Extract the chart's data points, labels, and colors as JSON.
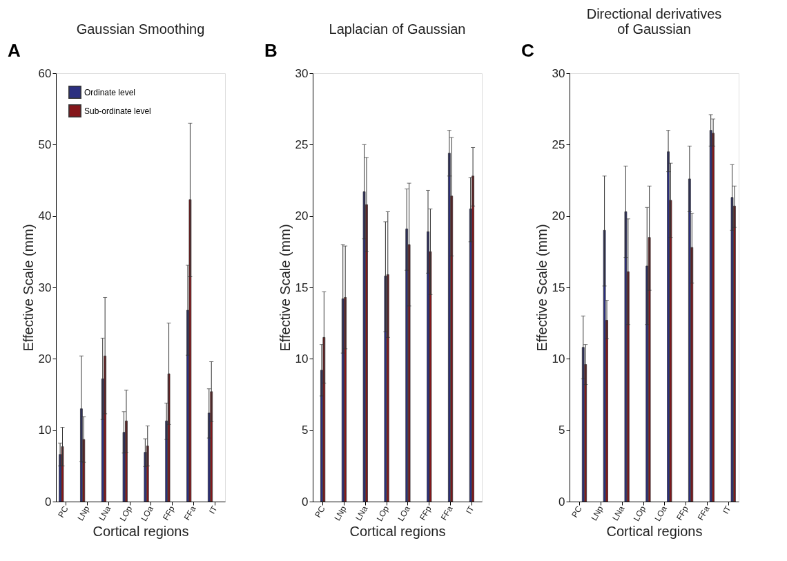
{
  "chart_data": [
    {
      "type": "bar",
      "title": "Gaussian Smoothing",
      "xlabel": "Cortical regions",
      "ylabel": "Effective Scale (mm)",
      "annotations": [
        "A"
      ],
      "categories": [
        "PC",
        "LNp",
        "LNa",
        "LOp",
        "LOa",
        "FFp",
        "FFa",
        "IT"
      ],
      "series": [
        {
          "name": "Ordinate level",
          "color": "#2b2f80",
          "values": [
            6.6,
            13.0,
            17.2,
            9.7,
            6.9,
            11.3,
            26.8,
            12.4
          ],
          "errors": [
            [
              5.0,
              8.2
            ],
            [
              5.6,
              20.4
            ],
            [
              11.5,
              22.9
            ],
            [
              6.8,
              12.6
            ],
            [
              4.9,
              8.8
            ],
            [
              8.7,
              13.8
            ],
            [
              20.5,
              33.1
            ],
            [
              8.9,
              15.8
            ]
          ]
        },
        {
          "name": "Sub-ordinate level",
          "color": "#85161a",
          "values": [
            7.7,
            8.7,
            20.4,
            11.3,
            7.8,
            17.9,
            42.3,
            15.4
          ],
          "errors": [
            [
              5.0,
              10.4
            ],
            [
              5.5,
              11.9
            ],
            [
              12.3,
              28.6
            ],
            [
              6.9,
              15.6
            ],
            [
              5.0,
              10.6
            ],
            [
              10.8,
              25.0
            ],
            [
              31.5,
              53.0
            ],
            [
              11.2,
              19.6
            ]
          ]
        }
      ],
      "ylim": [
        0,
        60
      ],
      "yticks": [
        0,
        10,
        20,
        30,
        40,
        50,
        60
      ],
      "grid": false,
      "legend": "top left"
    },
    {
      "type": "bar",
      "title": "Laplacian of Gaussian",
      "xlabel": "Cortical regions",
      "ylabel": "Effective Scale (mm)",
      "annotations": [
        "B"
      ],
      "categories": [
        "PC",
        "LNp",
        "LNa",
        "LOp",
        "LOa",
        "FFp",
        "FFa",
        "IT"
      ],
      "series": [
        {
          "color": "#2b2f80",
          "values": [
            9.2,
            14.2,
            21.7,
            15.8,
            19.1,
            18.9,
            24.4,
            20.5
          ],
          "errors": [
            [
              7.4,
              11.0
            ],
            [
              10.4,
              18.0
            ],
            [
              18.4,
              25.0
            ],
            [
              11.9,
              19.6
            ],
            [
              16.2,
              21.9
            ],
            [
              16.0,
              21.8
            ],
            [
              22.8,
              26.0
            ],
            [
              18.2,
              22.7
            ]
          ]
        },
        {
          "color": "#85161a",
          "values": [
            11.5,
            14.3,
            20.8,
            15.9,
            18.0,
            17.5,
            21.4,
            22.8
          ],
          "errors": [
            [
              8.3,
              14.7
            ],
            [
              10.7,
              17.9
            ],
            [
              17.5,
              24.1
            ],
            [
              11.5,
              20.3
            ],
            [
              13.7,
              22.3
            ],
            [
              14.5,
              20.5
            ],
            [
              17.2,
              25.5
            ],
            [
              20.7,
              24.8
            ]
          ]
        }
      ],
      "ylim": [
        0,
        30
      ],
      "yticks": [
        0,
        5,
        10,
        15,
        20,
        25,
        30
      ],
      "grid": false
    },
    {
      "type": "bar",
      "title": "Directional derivatives\nof Gaussian",
      "xlabel": "Cortical regions",
      "ylabel": "Effective Scale (mm)",
      "annotations": [
        "C"
      ],
      "categories": [
        "PC",
        "LNp",
        "LNa",
        "LOp",
        "LOa",
        "FFp",
        "FFa",
        "IT"
      ],
      "series": [
        {
          "color": "#2b2f80",
          "values": [
            10.8,
            19.0,
            20.3,
            16.5,
            24.5,
            22.6,
            26.0,
            21.3
          ],
          "errors": [
            [
              8.6,
              13.0
            ],
            [
              15.1,
              22.8
            ],
            [
              17.1,
              23.5
            ],
            [
              12.4,
              20.6
            ],
            [
              23.1,
              26.0
            ],
            [
              20.3,
              24.9
            ],
            [
              24.9,
              27.1
            ],
            [
              19.0,
              23.6
            ]
          ]
        },
        {
          "color": "#85161a",
          "values": [
            9.6,
            12.7,
            16.1,
            18.5,
            21.1,
            17.8,
            25.8,
            20.7
          ],
          "errors": [
            [
              8.2,
              11.0
            ],
            [
              11.4,
              14.1
            ],
            [
              12.4,
              19.8
            ],
            [
              14.8,
              22.1
            ],
            [
              18.5,
              23.7
            ],
            [
              15.3,
              20.2
            ],
            [
              24.9,
              26.8
            ],
            [
              19.2,
              22.1
            ]
          ]
        }
      ],
      "ylim": [
        0,
        30
      ],
      "yticks": [
        0,
        5,
        10,
        15,
        20,
        25,
        30
      ],
      "grid": false
    }
  ]
}
